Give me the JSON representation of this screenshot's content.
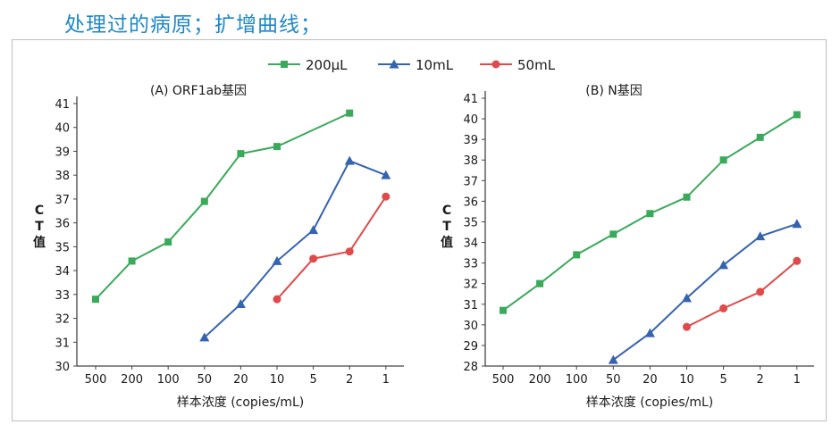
{
  "page": {
    "title": "处理过的病原；扩增曲线；"
  },
  "colors": {
    "title": "#1e88c8",
    "s200ul": "#3aaa5a",
    "s10ml": "#3563b0",
    "s50ml": "#e04a4a"
  },
  "legend": [
    {
      "name": "200μL",
      "color": "#3aaa5a",
      "marker": "square"
    },
    {
      "name": "10mL",
      "color": "#3563b0",
      "marker": "triangle"
    },
    {
      "name": "50mL",
      "color": "#e04a4a",
      "marker": "circle"
    }
  ],
  "chart_data": [
    {
      "type": "line",
      "title": "(A) ORF1ab基因",
      "xlabel": "样本浓度 (copies/mL)",
      "ylabel": "CT值",
      "categories": [
        "500",
        "200",
        "100",
        "50",
        "20",
        "10",
        "5",
        "2",
        "1"
      ],
      "ylim": [
        30,
        41
      ],
      "yticks": [
        30,
        31,
        32,
        33,
        34,
        35,
        36,
        37,
        38,
        39,
        40,
        41
      ],
      "series": [
        {
          "name": "200μL",
          "color": "#3aaa5a",
          "marker": "square",
          "values": [
            32.8,
            34.4,
            35.2,
            36.9,
            38.9,
            39.2,
            null,
            40.6,
            null
          ]
        },
        {
          "name": "10mL",
          "color": "#3563b0",
          "marker": "triangle",
          "values": [
            null,
            null,
            null,
            31.2,
            32.6,
            34.4,
            35.7,
            38.6,
            38.0
          ]
        },
        {
          "name": "50mL",
          "color": "#e04a4a",
          "marker": "circle",
          "values": [
            null,
            null,
            null,
            null,
            null,
            32.8,
            34.5,
            34.8,
            37.1
          ]
        }
      ]
    },
    {
      "type": "line",
      "title": "(B) N基因",
      "xlabel": "样本浓度 (copies/mL)",
      "ylabel": "CT值",
      "categories": [
        "500",
        "200",
        "100",
        "50",
        "20",
        "10",
        "5",
        "2",
        "1"
      ],
      "ylim": [
        28,
        41
      ],
      "yticks": [
        28,
        29,
        30,
        31,
        32,
        33,
        34,
        35,
        36,
        37,
        38,
        39,
        40,
        41
      ],
      "series": [
        {
          "name": "200μL",
          "color": "#3aaa5a",
          "marker": "square",
          "values": [
            30.7,
            32.0,
            33.4,
            34.4,
            35.4,
            36.2,
            38.0,
            39.1,
            40.2
          ]
        },
        {
          "name": "10mL",
          "color": "#3563b0",
          "marker": "triangle",
          "values": [
            null,
            null,
            null,
            28.3,
            29.6,
            31.3,
            32.9,
            34.3,
            34.9
          ]
        },
        {
          "name": "50mL",
          "color": "#e04a4a",
          "marker": "circle",
          "values": [
            null,
            null,
            null,
            null,
            null,
            29.9,
            30.8,
            31.6,
            33.1
          ]
        }
      ]
    }
  ]
}
